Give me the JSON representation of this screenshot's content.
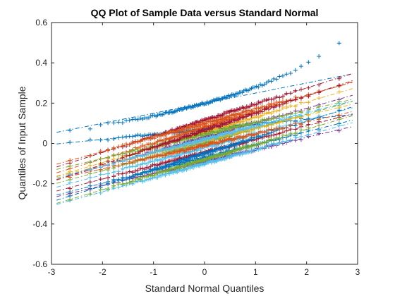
{
  "chart_data": {
    "type": "scatter",
    "title": "QQ Plot of Sample Data versus Standard Normal",
    "xlabel": "Standard Normal Quantiles",
    "ylabel": "Quantiles of Input Sample",
    "xlim": [
      -3,
      3
    ],
    "ylim": [
      -0.6,
      0.6
    ],
    "xticks": [
      -3,
      -2,
      -1,
      0,
      1,
      2,
      3
    ],
    "yticks": [
      -0.6,
      -0.4,
      -0.2,
      0,
      0.2,
      0.4,
      0.6
    ],
    "xtick_labels": [
      "-3",
      "-2",
      "-1",
      "0",
      "1",
      "2",
      "3"
    ],
    "ytick_labels": [
      "-0.6",
      "-0.4",
      "-0.2",
      "0",
      "0.2",
      "0.4",
      "0.6"
    ],
    "grid": false,
    "marker": "+",
    "reference_line_style": "dash-dot",
    "x_quantile_range": [
      -2.9,
      2.9
    ],
    "palette": [
      "#0072BD",
      "#D95319",
      "#EDB120",
      "#7E2F8E",
      "#77AC30",
      "#4DBEEE",
      "#A2142F"
    ],
    "series": [
      {
        "color": "#0072BD",
        "intercept": 0.2,
        "slope": 0.05,
        "bulge": 0.3,
        "outliers": "upper"
      },
      {
        "color": "#0072BD",
        "intercept": 0.07,
        "slope": 0.025,
        "bulge": 0.0,
        "outliers": "flat"
      },
      {
        "color": "#A2142F",
        "intercept": 0.115,
        "slope": 0.08,
        "bulge": 0.01
      },
      {
        "color": "#D95319",
        "intercept": 0.08,
        "slope": 0.078,
        "bulge": -0.005
      },
      {
        "color": "#EDB120",
        "intercept": 0.055,
        "slope": 0.075,
        "bulge": 0.005
      },
      {
        "color": "#7E2F8E",
        "intercept": 0.03,
        "slope": 0.072,
        "bulge": 0.0
      },
      {
        "color": "#77AC30",
        "intercept": 0.005,
        "slope": 0.07,
        "bulge": 0.005
      },
      {
        "color": "#4DBEEE",
        "intercept": -0.02,
        "slope": 0.068,
        "bulge": 0.0
      },
      {
        "color": "#A2142F",
        "intercept": -0.045,
        "slope": 0.066,
        "bulge": -0.005
      },
      {
        "color": "#0072BD",
        "intercept": -0.07,
        "slope": 0.064,
        "bulge": 0.0
      },
      {
        "color": "#D95319",
        "intercept": 0.1,
        "slope": 0.07,
        "bulge": 0.0
      },
      {
        "color": "#EDB120",
        "intercept": 0.015,
        "slope": 0.062,
        "bulge": 0.0
      },
      {
        "color": "#7E2F8E",
        "intercept": -0.09,
        "slope": 0.06,
        "bulge": 0.005
      },
      {
        "color": "#77AC30",
        "intercept": 0.045,
        "slope": 0.06,
        "bulge": 0.0
      },
      {
        "color": "#4DBEEE",
        "intercept": -0.1,
        "slope": 0.07,
        "bulge": 0.0
      },
      {
        "color": "#A2142F",
        "intercept": 0.065,
        "slope": 0.085,
        "bulge": 0.01
      },
      {
        "color": "#0072BD",
        "intercept": -0.05,
        "slope": 0.08,
        "bulge": 0.0
      },
      {
        "color": "#D95319",
        "intercept": -0.01,
        "slope": 0.058,
        "bulge": 0.0
      },
      {
        "color": "#77AC30",
        "intercept": -0.08,
        "slope": 0.075,
        "bulge": 0.0
      },
      {
        "color": "#4DBEEE",
        "intercept": 0.02,
        "slope": 0.066,
        "bulge": 0.0
      }
    ]
  }
}
